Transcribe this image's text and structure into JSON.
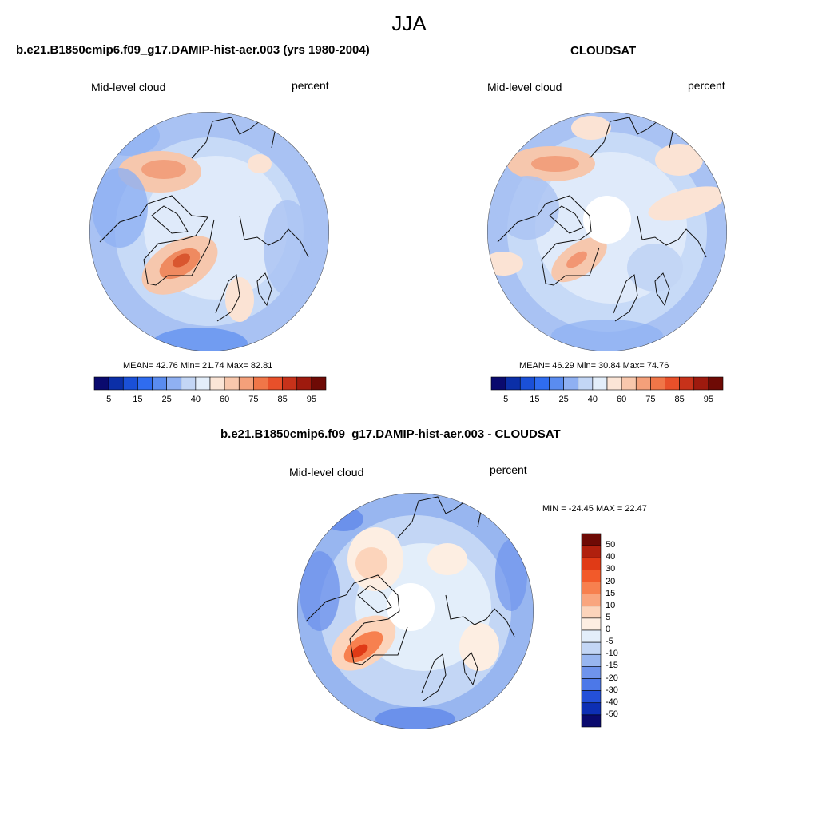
{
  "suptitle": "JJA",
  "panels": [
    {
      "title": "b.e21.B1850cmip6.f09_g17.DAMIP-hist-aer.003 (yrs 1980-2004)",
      "left_label": "Mid-level cloud",
      "right_label": "percent",
      "stats": "MEAN=  42.76  Min=  21.74  Max=  82.81",
      "colorbar_ticks": [
        "5",
        "15",
        "25",
        "40",
        "60",
        "75",
        "85",
        "95"
      ]
    },
    {
      "title": "CLOUDSAT",
      "left_label": "Mid-level cloud",
      "right_label": "percent",
      "stats": "MEAN=  46.29  Min=  30.84  Max=  74.76",
      "colorbar_ticks": [
        "5",
        "15",
        "25",
        "40",
        "60",
        "75",
        "85",
        "95"
      ]
    },
    {
      "title": "b.e21.B1850cmip6.f09_g17.DAMIP-hist-aer.003 - CLOUDSAT",
      "left_label": "Mid-level cloud",
      "right_label": "percent",
      "stats": "MIN = -24.45 MAX =  22.47",
      "colorbar_ticks": [
        "50",
        "40",
        "30",
        "20",
        "15",
        "10",
        "5",
        "0",
        "-5",
        "-10",
        "-15",
        "-20",
        "-30",
        "-40",
        "-50"
      ]
    }
  ],
  "colors": {
    "abs_scale": [
      "#0a0a6e",
      "#0b2fa8",
      "#1a50d8",
      "#2f6cf0",
      "#5a8cf0",
      "#8fb0f2",
      "#c3d6f5",
      "#e3eefa",
      "#fbe5d6",
      "#f8c7ac",
      "#f4a07a",
      "#f07648",
      "#e8502a",
      "#c7321a",
      "#9e1a0e",
      "#6e0a05"
    ],
    "diff_scale": [
      "#6e0a05",
      "#b0200e",
      "#e03a16",
      "#f25a2a",
      "#f7804f",
      "#f9a57e",
      "#fcd4bb",
      "#fdeee2",
      "#e3eefa",
      "#c3d6f5",
      "#98b6f0",
      "#6f94ec",
      "#4c78e8",
      "#2450d8",
      "#0d2fb4",
      "#0a0a6e"
    ],
    "coast": "#111111"
  }
}
